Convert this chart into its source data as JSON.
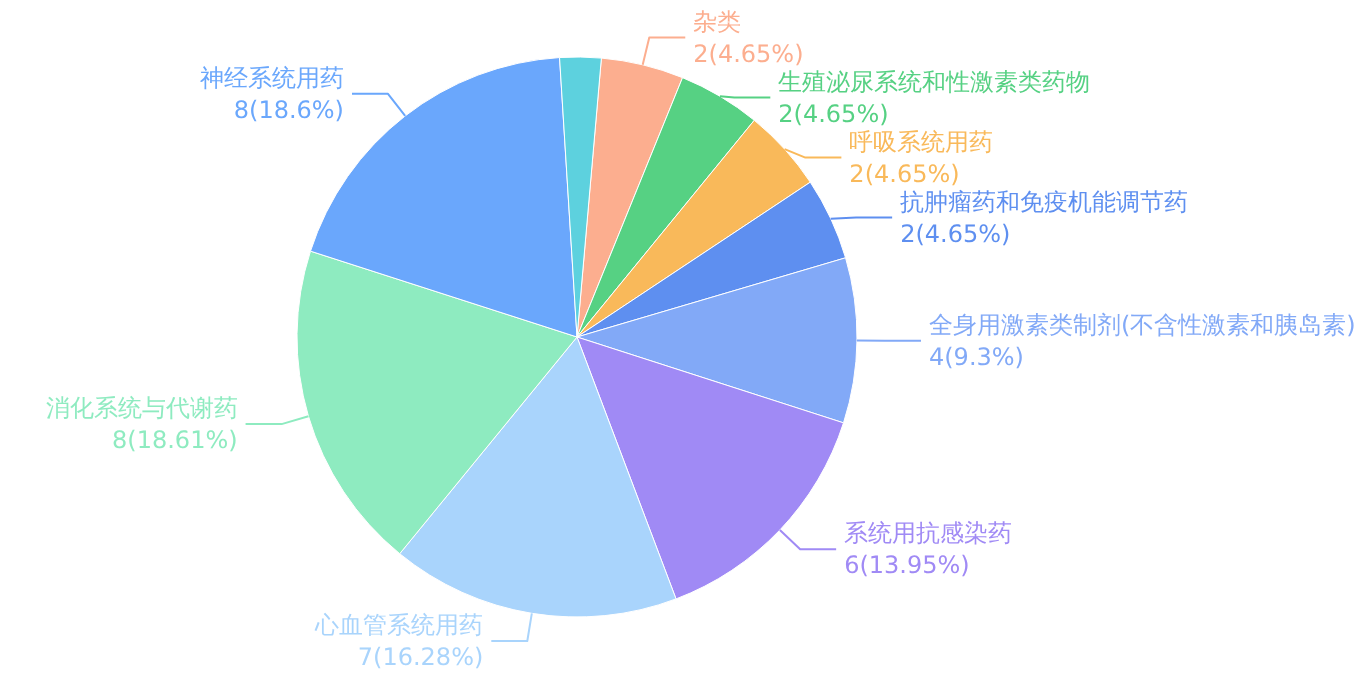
{
  "chart_data": {
    "type": "pie",
    "categories": [
      "杂类",
      "生殖泌尿系统和性激素类药物",
      "呼吸系统用药",
      "抗肿瘤药和免疫机能调节药",
      "全身用激素类制剂(不含性激素和胰岛素)",
      "系统用抗感染药",
      "心血管系统用药",
      "消化系统与代谢药",
      "神经系统用药",
      null
    ],
    "values": [
      2,
      2,
      2,
      2,
      4,
      6,
      7,
      8,
      8,
      1
    ],
    "value_labels": [
      "2(4.65%)",
      "2(4.65%)",
      "2(4.65%)",
      "2(4.65%)",
      "4(9.3%)",
      "6(13.95%)",
      "7(16.28%)",
      "8(18.61%)",
      "8(18.6%)",
      null
    ],
    "colors": [
      "#fcae8f",
      "#56d183",
      "#f9b95a",
      "#5e8ff0",
      "#82a9f7",
      "#a08af5",
      "#a9d4fc",
      "#8eebc0",
      "#6aa7fc",
      "#5dd1de"
    ]
  }
}
